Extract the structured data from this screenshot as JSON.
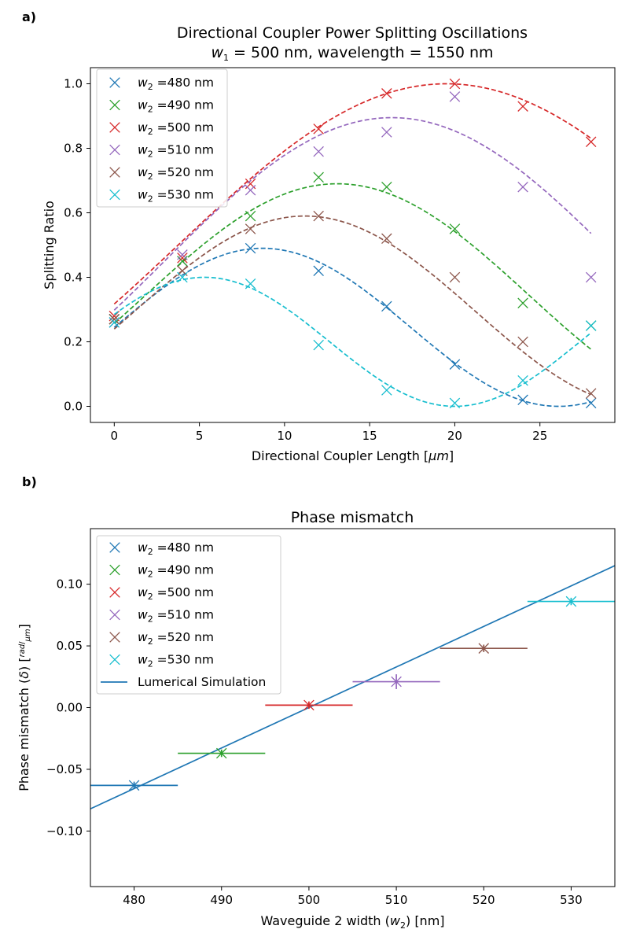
{
  "chart_data": [
    {
      "type": "scatter",
      "panel_label": "a)",
      "title_line1": "Directional Coupler Power Splitting Oscillations",
      "title_line2_parts": [
        "w",
        "1",
        " = 500 nm, wavelength = 1550 nm"
      ],
      "xlabel_text": "Directional Coupler Length [",
      "xlabel_var": "μm",
      "xlabel_end": "]",
      "ylabel": "Splitting Ratio",
      "xlim": [
        -1.4,
        29.4
      ],
      "ylim": [
        -0.05,
        1.05
      ],
      "xticks": [
        0,
        5,
        10,
        15,
        20,
        25
      ],
      "yticks": [
        0.0,
        0.2,
        0.4,
        0.6,
        0.8,
        1.0
      ],
      "xtick_labels": [
        "0",
        "5",
        "10",
        "15",
        "20",
        "25"
      ],
      "ytick_labels": [
        "0.0",
        "0.2",
        "0.4",
        "0.6",
        "0.8",
        "1.0"
      ],
      "legend_position": "upper-left",
      "x": [
        0,
        4,
        8,
        12,
        16,
        20,
        24,
        28
      ],
      "series": [
        {
          "name_var": "w",
          "name_sub": "2",
          "name_rest": " =480 nm",
          "color": "#1f77b4",
          "points": [
            0.27,
            0.45,
            0.49,
            0.42,
            0.31,
            0.13,
            0.02,
            0.01
          ],
          "fit": {
            "amp": 0.49,
            "period": 34.8,
            "phase": 8.7,
            "x_end": 28
          }
        },
        {
          "name_var": "w",
          "name_sub": "2",
          "name_rest": " =490 nm",
          "color": "#2ca02c",
          "points": [
            0.27,
            0.45,
            0.59,
            0.71,
            0.68,
            0.55,
            0.32,
            0.25
          ],
          "fit": {
            "amp": 0.69,
            "period": 45.0,
            "phase": 13.1,
            "x_end": 28
          }
        },
        {
          "name_var": "w",
          "name_sub": "2",
          "name_rest": " =500 nm",
          "color": "#d62728",
          "points": [
            0.28,
            0.46,
            0.69,
            0.86,
            0.97,
            1.0,
            0.93,
            0.82
          ],
          "fit": {
            "amp": 1.0,
            "period": 63.0,
            "phase": 19.5,
            "x_end": 28
          }
        },
        {
          "name_var": "w",
          "name_sub": "2",
          "name_rest": " =510 nm",
          "color": "#9467bd",
          "points": [
            0.26,
            0.47,
            0.67,
            0.79,
            0.85,
            0.96,
            0.68,
            0.4
          ],
          "fit": {
            "amp": 0.895,
            "period": 53.6,
            "phase": 16.3,
            "x_end": 28
          }
        },
        {
          "name_var": "w",
          "name_sub": "2",
          "name_rest": " =520 nm",
          "color": "#8c564b",
          "points": [
            0.27,
            0.42,
            0.55,
            0.59,
            0.52,
            0.4,
            0.2,
            0.04
          ],
          "fit": {
            "amp": 0.59,
            "period": 40.0,
            "phase": 11.2,
            "x_end": 28
          }
        },
        {
          "name_var": "w",
          "name_sub": "2",
          "name_rest": " =530 nm",
          "color": "#17becf",
          "points": [
            0.26,
            0.4,
            0.38,
            0.19,
            0.05,
            0.01,
            0.08,
            0.25
          ],
          "fit": {
            "amp": 0.4,
            "period": 29.4,
            "phase": 5.3,
            "x_end": 28
          }
        }
      ]
    },
    {
      "type": "scatter",
      "panel_label": "b)",
      "title": "Phase mismatch",
      "xlabel_text": "Waveguide 2 width (",
      "xlabel_var": "w",
      "xlabel_sub": "2",
      "xlabel_end": ") [nm]",
      "ylabel_text": "Phase mismatch (",
      "ylabel_var": "δ",
      "ylabel_mid": ") [",
      "ylabel_frac_num": "rad",
      "ylabel_frac_den": "μm",
      "ylabel_end": "]",
      "xlim": [
        475,
        535
      ],
      "ylim": [
        -0.145,
        0.145
      ],
      "xticks": [
        480,
        490,
        500,
        510,
        520,
        530
      ],
      "yticks": [
        -0.1,
        -0.05,
        0.0,
        0.05,
        0.1
      ],
      "xtick_labels": [
        "480",
        "490",
        "500",
        "510",
        "520",
        "530"
      ],
      "ytick_labels": [
        "−0.10",
        "−0.05",
        "0.00",
        "0.05",
        "0.10"
      ],
      "legend_position": "upper-left",
      "series": [
        {
          "name_var": "w",
          "name_sub": "2",
          "name_rest": " =480 nm",
          "color": "#1f77b4",
          "x": 480,
          "y": -0.063,
          "xerr": 5,
          "yerr": 0.003
        },
        {
          "name_var": "w",
          "name_sub": "2",
          "name_rest": " =490 nm",
          "color": "#2ca02c",
          "x": 490,
          "y": -0.037,
          "xerr": 5,
          "yerr": 0.003
        },
        {
          "name_var": "w",
          "name_sub": "2",
          "name_rest": " =500 nm",
          "color": "#d62728",
          "x": 500,
          "y": 0.002,
          "xerr": 5,
          "yerr": 0.003
        },
        {
          "name_var": "w",
          "name_sub": "2",
          "name_rest": " =510 nm",
          "color": "#9467bd",
          "x": 510,
          "y": 0.021,
          "xerr": 5,
          "yerr": 0.006
        },
        {
          "name_var": "w",
          "name_sub": "2",
          "name_rest": " =520 nm",
          "color": "#8c564b",
          "x": 520,
          "y": 0.048,
          "xerr": 5,
          "yerr": 0.003
        },
        {
          "name_var": "w",
          "name_sub": "2",
          "name_rest": " =530 nm",
          "color": "#17becf",
          "x": 530,
          "y": 0.086,
          "xerr": 5,
          "yerr": 0.003
        }
      ],
      "line": {
        "name": "Lumerical Simulation",
        "color": "#1f77b4",
        "x": [
          475,
          535
        ],
        "y": [
          -0.082,
          0.115
        ]
      }
    }
  ]
}
